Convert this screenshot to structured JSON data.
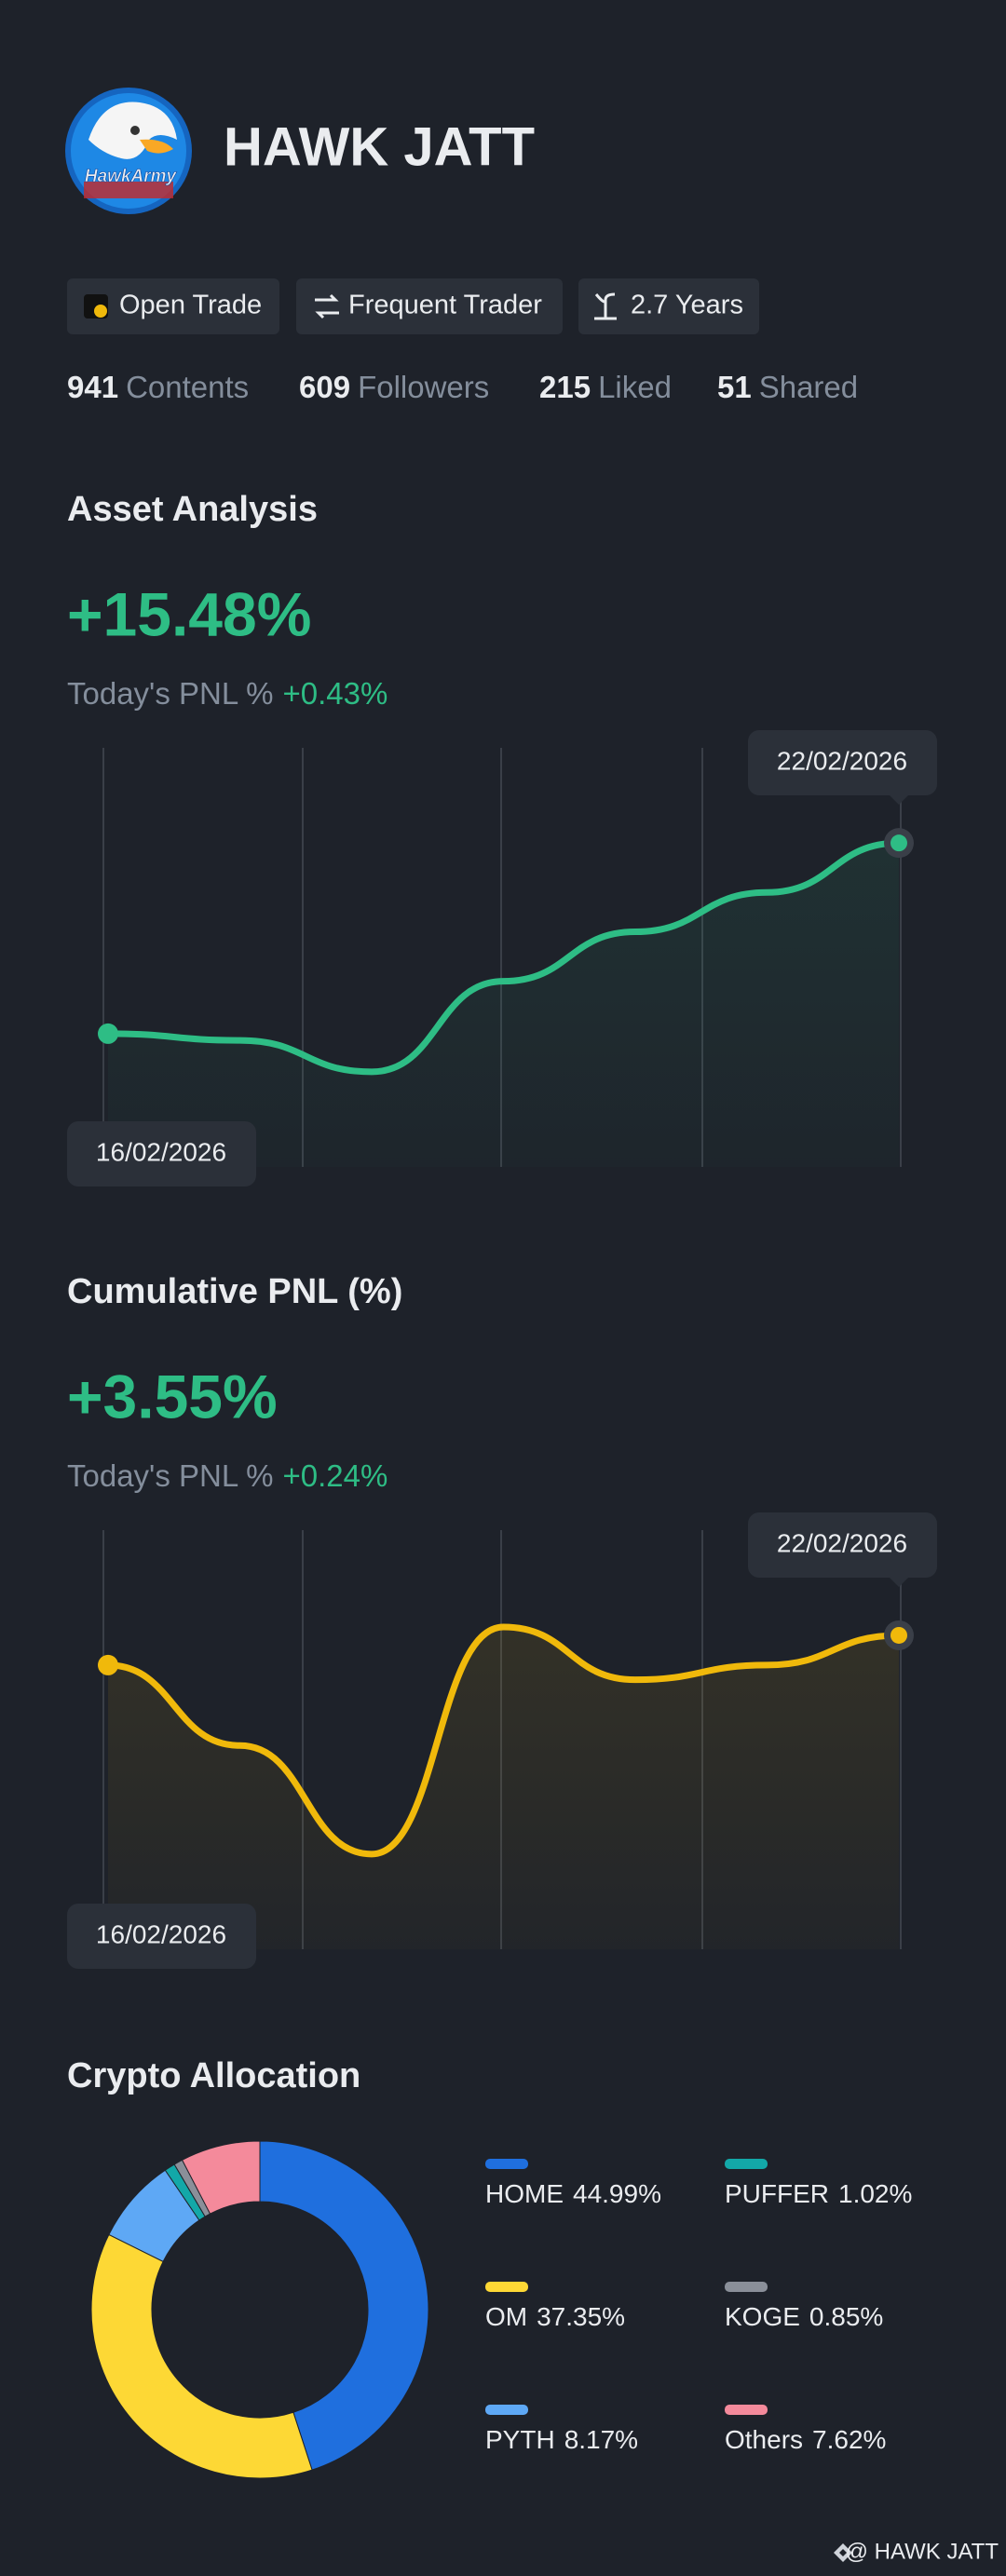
{
  "profile": {
    "name": "HAWK JATT",
    "avatar_text": "HawkArmy",
    "badges": [
      "Open Trade",
      "Frequent Trader",
      "2.7 Years"
    ],
    "stats": [
      {
        "count": 941,
        "label": "Contents"
      },
      {
        "count": 609,
        "label": "Followers"
      },
      {
        "count": 215,
        "label": "Liked"
      },
      {
        "count": 51,
        "label": "Shared"
      }
    ]
  },
  "chart_data": [
    {
      "type": "line",
      "title": "Asset Analysis",
      "headline": "+15.48%",
      "subtitle_label": "Today's PNL %",
      "subtitle_value": "+0.43%",
      "categories": [
        "16/02/2026",
        null,
        null,
        null,
        null,
        null,
        "22/02/2026"
      ],
      "values": [
        31.8,
        30.2,
        22.7,
        44.3,
        56.1,
        65.5,
        77.3
      ],
      "ylim": [
        0,
        100
      ],
      "color": "#2ebd85",
      "grid": true
    },
    {
      "type": "line",
      "title": "Cumulative PNL (%)",
      "headline": "+3.55%",
      "subtitle_label": "Today's PNL %",
      "subtitle_value": "+0.24%",
      "categories": [
        "16/02/2026",
        null,
        null,
        null,
        null,
        null,
        "22/02/2026"
      ],
      "values": [
        67.8,
        48.6,
        22.7,
        76.9,
        64.3,
        67.8,
        74.9
      ],
      "ylim": [
        0,
        100
      ],
      "color": "#f0b90b",
      "grid": true
    },
    {
      "type": "donut",
      "title": "Crypto Allocation",
      "categories": [
        "HOME",
        "OM",
        "PYTH",
        "PUFFER",
        "KOGE",
        "Others"
      ],
      "values": [
        44.99,
        37.35,
        8.17,
        1.02,
        0.85,
        7.62
      ],
      "value_labels": [
        "44.99%",
        "37.35%",
        "8.17%",
        "1.02%",
        "0.85%",
        "7.62%"
      ],
      "colors": [
        "#1f6fde",
        "#fdd835",
        "#5ea8f5",
        "#13a8a8",
        "#8a8f99",
        "#f48a9b"
      ]
    }
  ],
  "footer": "@ HAWK JATT"
}
